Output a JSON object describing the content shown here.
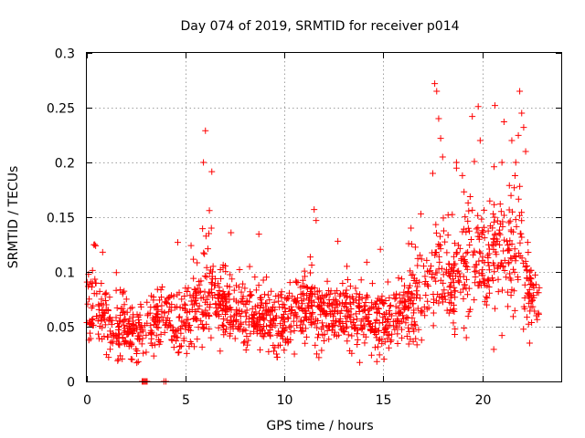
{
  "chart_data": {
    "type": "scatter",
    "title": "Day 074 of 2019, SRMTID for receiver p014",
    "xlabel": "GPS time / hours",
    "ylabel": "SRMTID / TECUs",
    "xlim": [
      0,
      24
    ],
    "ylim": [
      0,
      0.3
    ],
    "x_ticks": [
      0,
      5,
      10,
      15,
      20
    ],
    "x_tick_labels": [
      "0",
      "5",
      "10",
      "15",
      "20"
    ],
    "y_ticks": [
      0,
      0.05,
      0.1,
      0.15,
      0.2,
      0.25,
      0.3
    ],
    "y_tick_labels": [
      "0",
      "0.05",
      "0.1",
      "0.15",
      "0.2",
      "0.25",
      "0.3"
    ],
    "grid": true,
    "marker": "plus",
    "color": "#ff0000",
    "profile": [
      [
        0.0,
        0.072,
        0.025
      ],
      [
        0.5,
        0.068,
        0.025
      ],
      [
        1.0,
        0.055,
        0.02
      ],
      [
        1.5,
        0.05,
        0.02
      ],
      [
        2.0,
        0.05,
        0.02
      ],
      [
        2.5,
        0.045,
        0.015
      ],
      [
        3.0,
        0.045,
        0.015
      ],
      [
        3.5,
        0.058,
        0.02
      ],
      [
        4.0,
        0.055,
        0.02
      ],
      [
        4.5,
        0.05,
        0.02
      ],
      [
        5.0,
        0.058,
        0.02
      ],
      [
        5.5,
        0.065,
        0.022
      ],
      [
        6.0,
        0.078,
        0.03
      ],
      [
        6.5,
        0.075,
        0.02
      ],
      [
        7.0,
        0.07,
        0.02
      ],
      [
        7.5,
        0.065,
        0.02
      ],
      [
        8.0,
        0.06,
        0.02
      ],
      [
        8.5,
        0.06,
        0.02
      ],
      [
        9.0,
        0.058,
        0.02
      ],
      [
        9.5,
        0.055,
        0.02
      ],
      [
        10.0,
        0.052,
        0.02
      ],
      [
        10.5,
        0.062,
        0.02
      ],
      [
        11.0,
        0.068,
        0.02
      ],
      [
        11.5,
        0.07,
        0.025
      ],
      [
        12.0,
        0.062,
        0.02
      ],
      [
        12.5,
        0.06,
        0.02
      ],
      [
        13.0,
        0.065,
        0.02
      ],
      [
        13.5,
        0.06,
        0.02
      ],
      [
        14.0,
        0.055,
        0.02
      ],
      [
        14.5,
        0.055,
        0.02
      ],
      [
        15.0,
        0.052,
        0.015
      ],
      [
        15.5,
        0.055,
        0.015
      ],
      [
        16.0,
        0.065,
        0.02
      ],
      [
        16.5,
        0.072,
        0.025
      ],
      [
        17.0,
        0.08,
        0.03
      ],
      [
        17.5,
        0.095,
        0.035
      ],
      [
        18.0,
        0.105,
        0.04
      ],
      [
        18.5,
        0.09,
        0.03
      ],
      [
        19.0,
        0.1,
        0.035
      ],
      [
        19.5,
        0.11,
        0.035
      ],
      [
        20.0,
        0.095,
        0.03
      ],
      [
        20.5,
        0.11,
        0.03
      ],
      [
        21.0,
        0.12,
        0.035
      ],
      [
        21.5,
        0.125,
        0.04
      ],
      [
        22.0,
        0.11,
        0.035
      ],
      [
        22.5,
        0.075,
        0.02
      ],
      [
        22.9,
        0.065,
        0.015
      ]
    ],
    "spikes": [
      [
        0.4,
        0.125
      ],
      [
        0.8,
        0.118
      ],
      [
        4.6,
        0.127
      ],
      [
        5.9,
        0.2
      ],
      [
        6.0,
        0.229
      ],
      [
        6.2,
        0.156
      ],
      [
        6.3,
        0.14
      ],
      [
        11.5,
        0.157
      ],
      [
        11.6,
        0.147
      ],
      [
        12.7,
        0.128
      ],
      [
        16.4,
        0.14
      ],
      [
        16.9,
        0.153
      ],
      [
        17.6,
        0.272
      ],
      [
        17.7,
        0.265
      ],
      [
        17.8,
        0.24
      ],
      [
        17.9,
        0.222
      ],
      [
        18.0,
        0.205
      ],
      [
        17.5,
        0.19
      ],
      [
        18.7,
        0.2
      ],
      [
        19.0,
        0.188
      ],
      [
        19.5,
        0.242
      ],
      [
        19.8,
        0.251
      ],
      [
        19.9,
        0.22
      ],
      [
        20.6,
        0.196
      ],
      [
        21.0,
        0.2
      ],
      [
        21.5,
        0.22
      ],
      [
        21.7,
        0.2
      ],
      [
        21.9,
        0.265
      ],
      [
        22.0,
        0.245
      ],
      [
        22.1,
        0.232
      ],
      [
        22.2,
        0.21
      ],
      [
        22.4,
        0.1
      ]
    ],
    "zero_points": [
      2.8,
      2.85,
      2.9,
      2.95,
      3.0,
      3.05,
      3.9,
      4.0
    ],
    "cluster_lows": [
      [
        1.1,
        0.022
      ],
      [
        2.3,
        0.02
      ],
      [
        2.6,
        0.018
      ],
      [
        9.6,
        0.025
      ],
      [
        13.3,
        0.028
      ],
      [
        14.4,
        0.024
      ],
      [
        19.2,
        0.04
      ],
      [
        21.0,
        0.042
      ],
      [
        22.4,
        0.035
      ]
    ],
    "n_points": 1650,
    "seed": 74
  }
}
